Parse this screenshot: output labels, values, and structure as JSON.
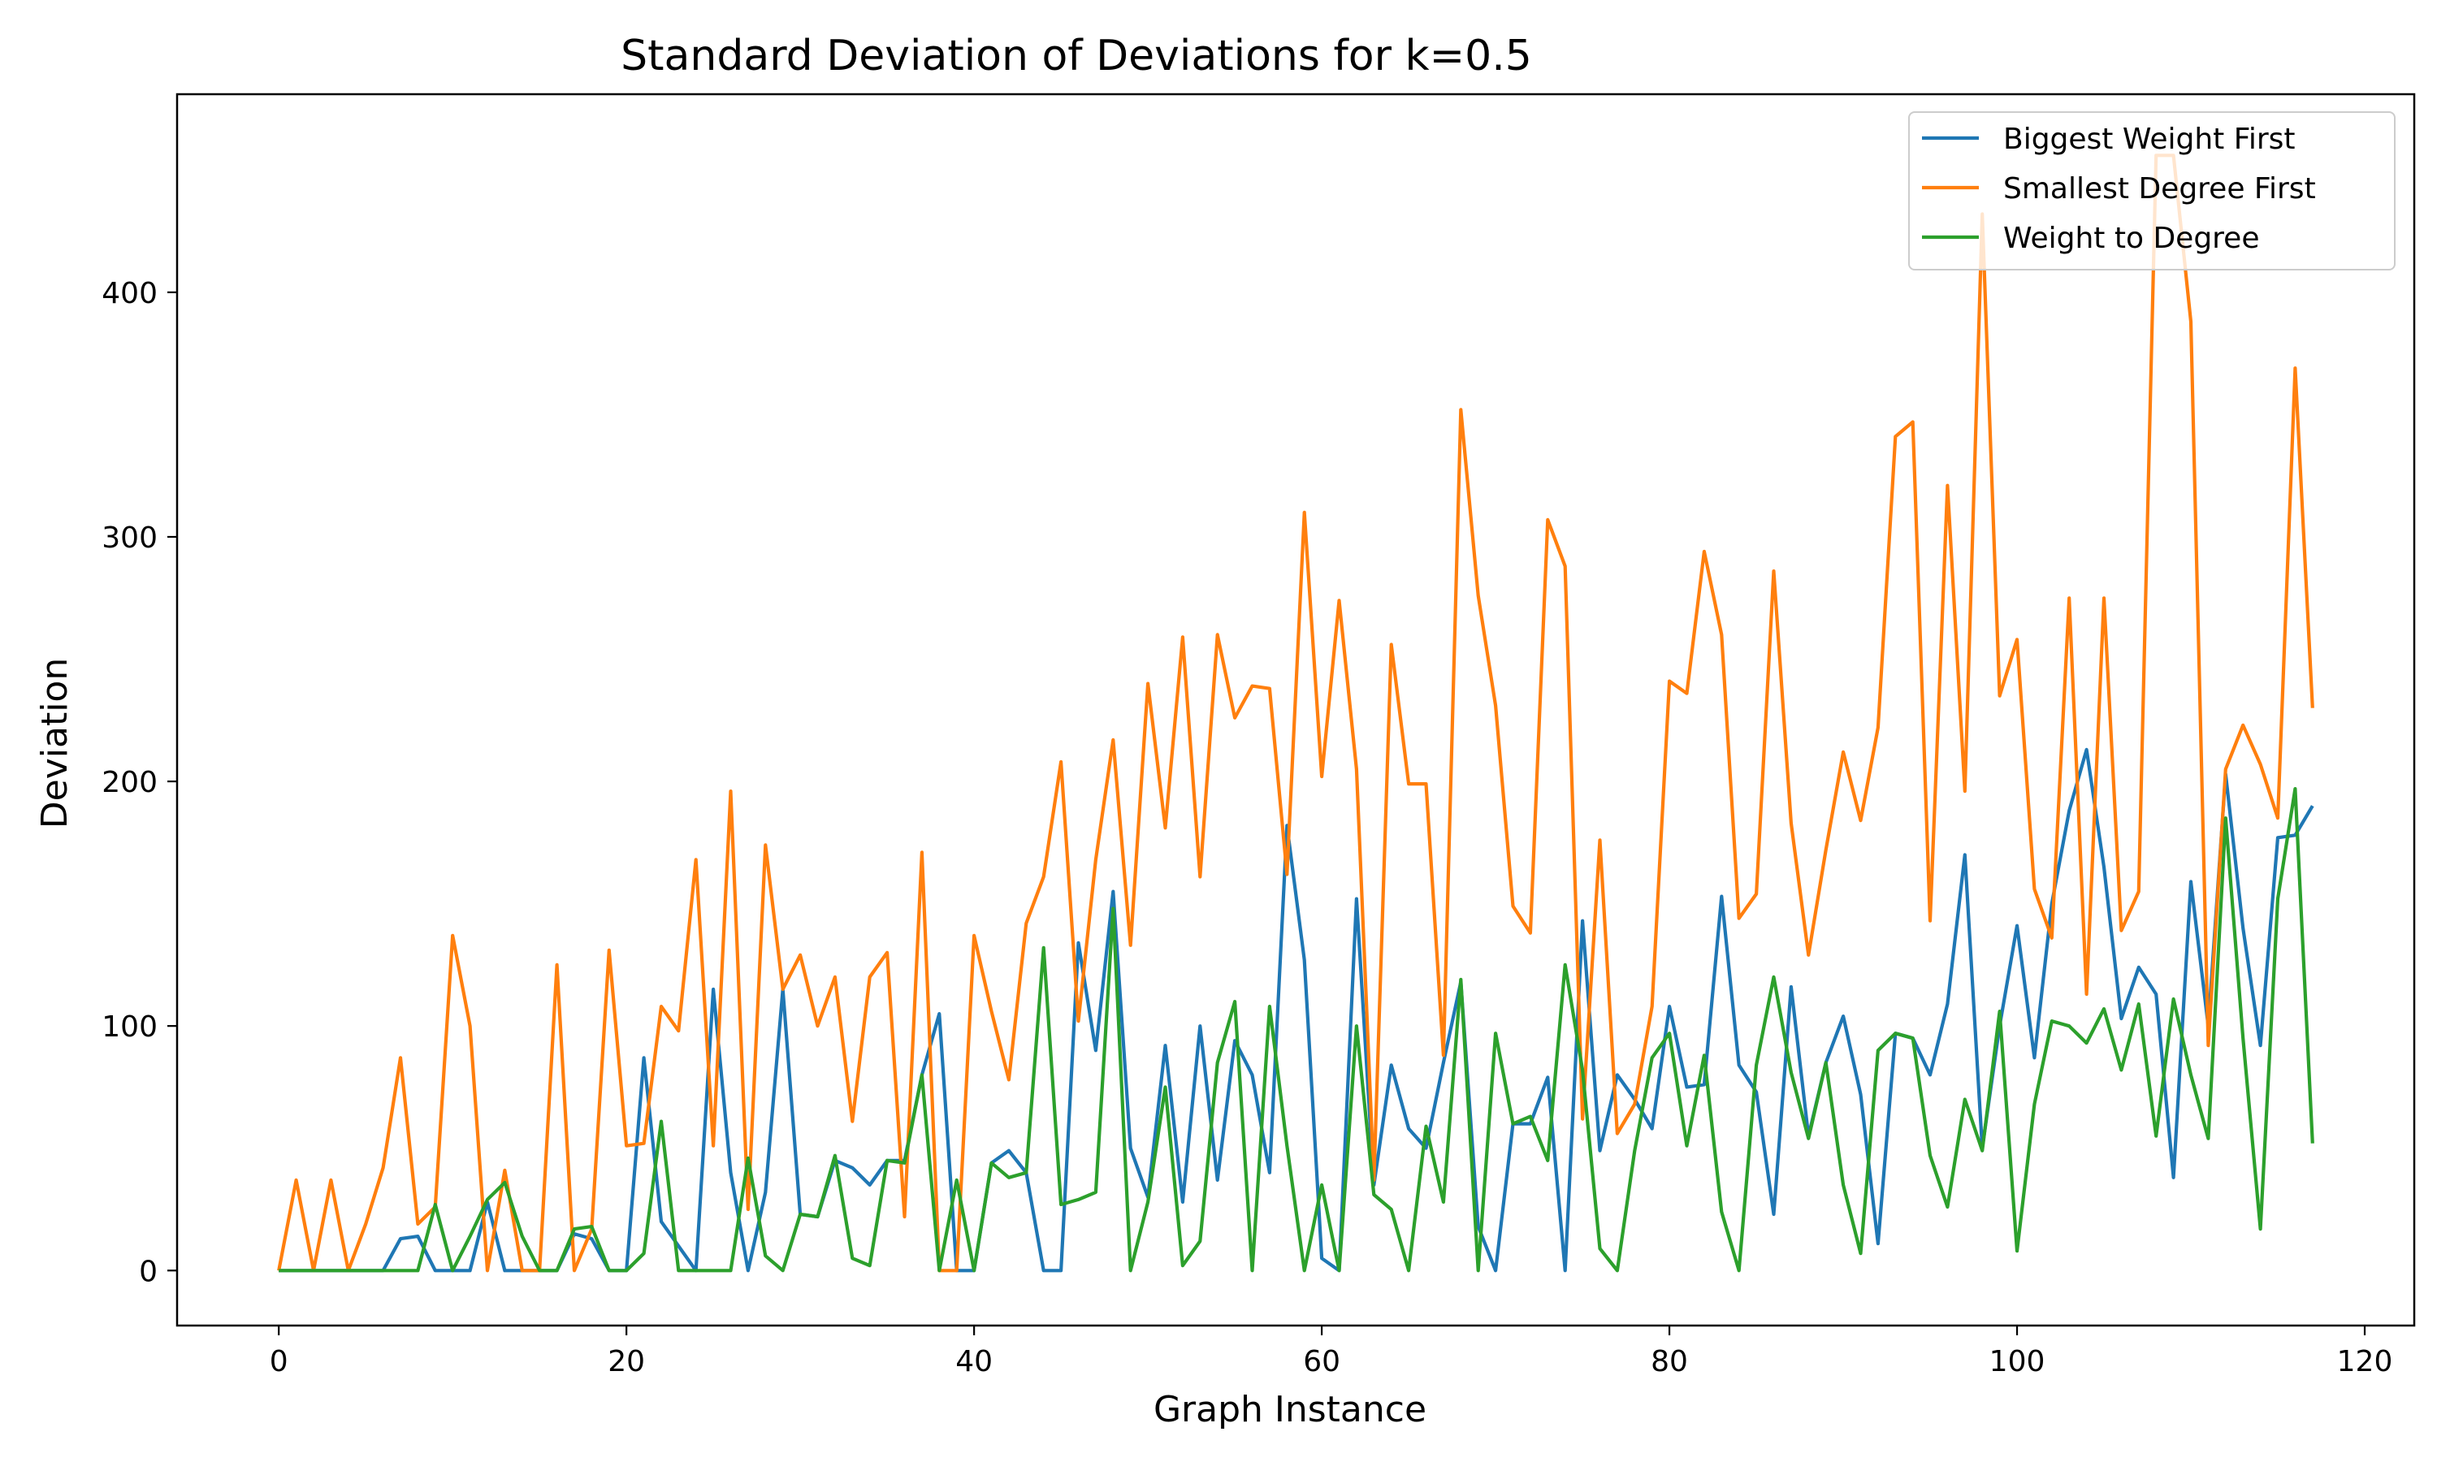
{
  "chart_data": {
    "type": "line",
    "title": "Standard Deviation of Deviations for k=0.5",
    "xlabel": "Graph Instance",
    "ylabel": "Deviation",
    "xlim": [
      -5.85,
      122.85
    ],
    "ylim": [
      -22.5,
      481
    ],
    "xticks": [
      0,
      20,
      40,
      60,
      80,
      100,
      120
    ],
    "yticks": [
      0,
      100,
      200,
      300,
      400
    ],
    "grid": false,
    "legend_position": "top-right",
    "x": [
      0,
      1,
      2,
      3,
      4,
      5,
      6,
      7,
      8,
      9,
      10,
      11,
      12,
      13,
      14,
      15,
      16,
      17,
      18,
      19,
      20,
      21,
      22,
      23,
      24,
      25,
      26,
      27,
      28,
      29,
      30,
      31,
      32,
      33,
      34,
      35,
      36,
      37,
      38,
      39,
      40,
      41,
      42,
      43,
      44,
      45,
      46,
      47,
      48,
      49,
      50,
      51,
      52,
      53,
      54,
      55,
      56,
      57,
      58,
      59,
      60,
      61,
      62,
      63,
      64,
      65,
      66,
      67,
      68,
      69,
      70,
      71,
      72,
      73,
      74,
      75,
      76,
      77,
      78,
      79,
      80,
      81,
      82,
      83,
      84,
      85,
      86,
      87,
      88,
      89,
      90,
      91,
      92,
      93,
      94,
      95,
      96,
      97,
      98,
      99,
      100,
      101,
      102,
      103,
      104,
      105,
      106,
      107,
      108,
      109,
      110,
      111,
      112,
      113,
      114,
      115,
      116,
      117
    ],
    "series": [
      {
        "name": "Biggest Weight First",
        "color": "#1f77b4",
        "values": [
          0,
          0,
          0,
          0,
          0,
          0,
          0,
          13,
          14,
          0,
          0,
          0,
          28,
          0,
          0,
          0,
          0,
          15,
          13,
          0,
          0,
          87,
          20,
          10,
          0,
          115,
          40,
          0,
          32,
          115,
          23,
          22,
          45,
          42,
          35,
          45,
          45,
          80,
          105,
          0,
          0,
          44,
          49,
          40,
          0,
          0,
          134,
          90,
          155,
          50,
          30,
          92,
          28,
          100,
          37,
          94,
          80,
          40,
          182,
          127,
          5,
          0,
          152,
          35,
          84,
          58,
          50,
          85,
          118,
          18,
          0,
          60,
          60,
          79,
          0,
          143,
          49,
          80,
          70,
          58,
          108,
          75,
          76,
          153,
          84,
          73,
          23,
          116,
          55,
          85,
          104,
          72,
          11,
          97,
          95,
          80,
          109,
          170,
          50,
          100,
          141,
          87,
          150,
          188,
          213,
          165,
          103,
          124,
          113,
          38,
          159,
          100,
          203,
          140,
          92,
          177,
          178,
          190
        ]
      },
      {
        "name": "Smallest Degree First",
        "color": "#ff7f0e",
        "values": [
          0,
          37,
          0,
          37,
          0,
          19,
          42,
          87,
          19,
          26,
          137,
          100,
          0,
          41,
          0,
          0,
          125,
          0,
          17,
          131,
          51,
          52,
          108,
          98,
          168,
          51,
          196,
          25,
          174,
          115,
          129,
          100,
          120,
          61,
          120,
          130,
          22,
          171,
          0,
          0,
          137,
          106,
          78,
          142,
          161,
          208,
          102,
          168,
          217,
          133,
          240,
          181,
          259,
          161,
          260,
          226,
          239,
          238,
          162,
          310,
          202,
          274,
          205,
          37,
          256,
          199,
          199,
          88,
          352,
          276,
          231,
          149,
          138,
          307,
          288,
          62,
          176,
          56,
          68,
          108,
          241,
          236,
          294,
          260,
          144,
          154,
          286,
          183,
          129,
          172,
          212,
          184,
          222,
          341,
          347,
          143,
          321,
          196,
          432,
          235,
          258,
          156,
          136,
          275,
          113,
          275,
          139,
          155,
          456,
          456,
          388,
          92,
          205,
          223,
          207,
          185,
          369,
          230
        ]
      },
      {
        "name": "Weight to Degree",
        "color": "#2ca02c",
        "values": [
          0,
          0,
          0,
          0,
          0,
          0,
          0,
          0,
          0,
          27,
          0,
          14,
          29,
          36,
          14,
          0,
          0,
          17,
          18,
          0,
          0,
          7,
          61,
          0,
          0,
          0,
          0,
          46,
          6,
          0,
          23,
          22,
          47,
          5,
          2,
          45,
          44,
          80,
          0,
          37,
          0,
          44,
          38,
          40,
          132,
          27,
          29,
          32,
          148,
          0,
          28,
          75,
          2,
          12,
          85,
          110,
          0,
          108,
          51,
          0,
          35,
          0,
          100,
          31,
          25,
          0,
          59,
          28,
          119,
          0,
          97,
          60,
          63,
          45,
          125,
          82,
          9,
          0,
          49,
          87,
          97,
          51,
          88,
          24,
          0,
          84,
          120,
          81,
          54,
          85,
          35,
          7,
          90,
          97,
          95,
          47,
          26,
          70,
          49,
          106,
          8,
          68,
          102,
          100,
          93,
          107,
          82,
          109,
          55,
          111,
          80,
          54,
          185,
          95,
          17,
          152,
          197,
          52
        ]
      }
    ]
  }
}
